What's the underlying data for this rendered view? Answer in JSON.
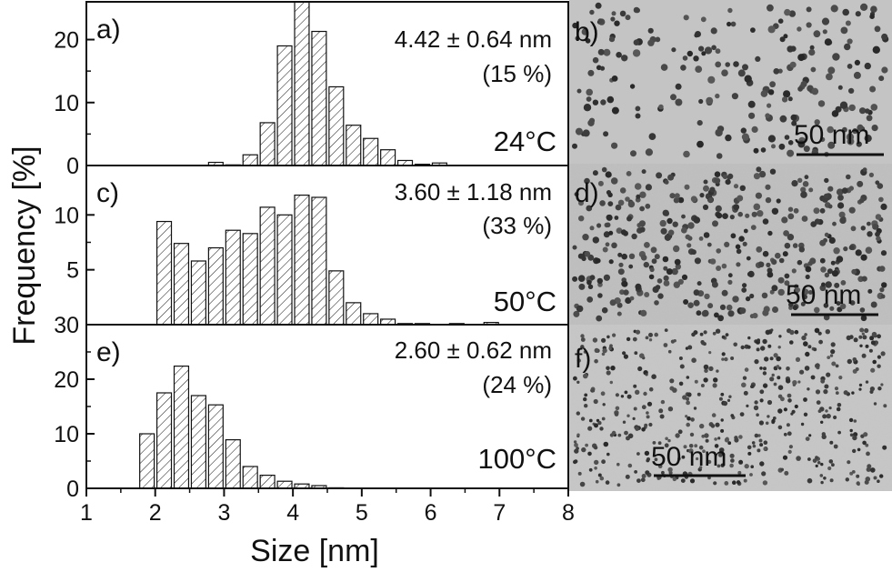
{
  "figure": {
    "ylabel": "Frequency [%]",
    "xlabel": "Size [nm]",
    "x_ticks": [
      "1",
      "2",
      "3",
      "4",
      "5",
      "6",
      "7",
      "8"
    ]
  },
  "chart_data": [
    {
      "type": "bar",
      "panel": "a)",
      "temperature": "24°C",
      "stat": "4.42 ± 0.64 nm",
      "dispersion": "(15 %)",
      "x": [
        2.88,
        3.13,
        3.38,
        3.63,
        3.88,
        4.13,
        4.38,
        4.63,
        4.88,
        5.13,
        5.38,
        5.63,
        5.88,
        6.13,
        6.38,
        6.63,
        6.88
      ],
      "values": [
        0.5,
        0.1,
        1.7,
        6.8,
        19,
        26,
        21.3,
        12.5,
        6.4,
        4.3,
        2.5,
        0.8,
        0.2,
        0.4,
        0,
        0,
        0
      ],
      "bin_width": 0.25,
      "ylim": [
        0,
        26
      ],
      "y_ticks": [
        "0",
        "10",
        "20"
      ],
      "xlim": [
        1,
        8
      ]
    },
    {
      "type": "bar",
      "panel": "c)",
      "temperature": "50°C",
      "stat": "3.60 ± 1.18 nm",
      "dispersion": "(33 %)",
      "x": [
        2.13,
        2.38,
        2.63,
        2.88,
        3.13,
        3.38,
        3.63,
        3.88,
        4.13,
        4.38,
        4.63,
        4.88,
        5.13,
        5.38,
        5.63,
        5.88,
        6.13,
        6.38,
        6.63,
        6.88,
        7.13,
        7.38
      ],
      "values": [
        9.4,
        7.4,
        5.8,
        7.0,
        8.6,
        8.3,
        10.7,
        10.0,
        11.8,
        11.6,
        4.9,
        2.0,
        1.0,
        0.5,
        0.1,
        0.1,
        0,
        0.1,
        0,
        0.2,
        0,
        0
      ],
      "bin_width": 0.25,
      "ylim": [
        0,
        14.5
      ],
      "y_ticks": [
        "5",
        "10"
      ],
      "xlim": [
        1,
        8
      ]
    },
    {
      "type": "bar",
      "panel": "e)",
      "temperature": "100°C",
      "stat": "2.60 ± 0.62 nm",
      "dispersion": "(24 %)",
      "x": [
        1.88,
        2.13,
        2.38,
        2.63,
        2.88,
        3.13,
        3.38,
        3.63,
        3.88,
        4.13,
        4.38,
        4.63,
        4.88
      ],
      "values": [
        10,
        17.5,
        22.4,
        17,
        15.3,
        8.9,
        4.0,
        2.4,
        1.3,
        0.8,
        0.5,
        0.1,
        0
      ],
      "bin_width": 0.25,
      "ylim": [
        0,
        30
      ],
      "y_ticks": [
        "0",
        "10",
        "20",
        "30"
      ],
      "xlim": [
        1,
        8
      ]
    }
  ],
  "micrographs": [
    {
      "panel": "b)",
      "scale_bar": "50 nm"
    },
    {
      "panel": "d)",
      "scale_bar": "50 nm"
    },
    {
      "panel": "f)",
      "scale_bar": "50 nm"
    }
  ]
}
